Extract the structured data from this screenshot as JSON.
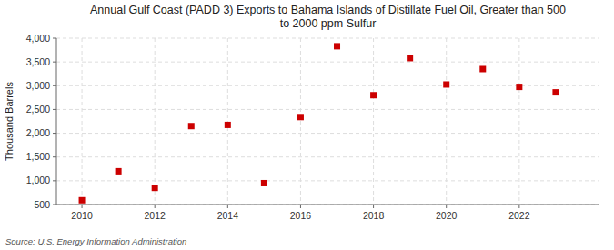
{
  "chart_data": {
    "type": "scatter",
    "title": "Annual Gulf Coast (PADD 3) Exports to Bahama Islands of Distillate Fuel Oil, Greater than 500\nto 2000 ppm Sulfur",
    "y_label": "Thousand Barrels",
    "source": "Source: U.S. Energy Information Administration",
    "x": [
      2010,
      2011,
      2012,
      2013,
      2014,
      2015,
      2016,
      2017,
      2018,
      2019,
      2020,
      2021,
      2022,
      2023
    ],
    "values": [
      590,
      1200,
      850,
      2150,
      2175,
      950,
      2340,
      3830,
      2800,
      3580,
      3025,
      3350,
      2975,
      2860
    ],
    "color": "#cc0000",
    "marker": "square",
    "xlim": [
      2009.3,
      2024.2
    ],
    "xticks": [
      2010,
      2012,
      2014,
      2016,
      2018,
      2020,
      2022
    ],
    "ylim": [
      500,
      4000
    ],
    "yticks": [
      500,
      {
        "value": 1000,
        "label": "1,000"
      },
      {
        "value": 1500,
        "label": "1,500"
      },
      {
        "value": 2000,
        "label": "2,000"
      },
      {
        "value": 2500,
        "label": "2,500"
      },
      {
        "value": 3000,
        "label": "3,000"
      },
      {
        "value": 3500,
        "label": "3,500"
      },
      {
        "value": 4000,
        "label": "4,000"
      }
    ],
    "grid": true
  }
}
